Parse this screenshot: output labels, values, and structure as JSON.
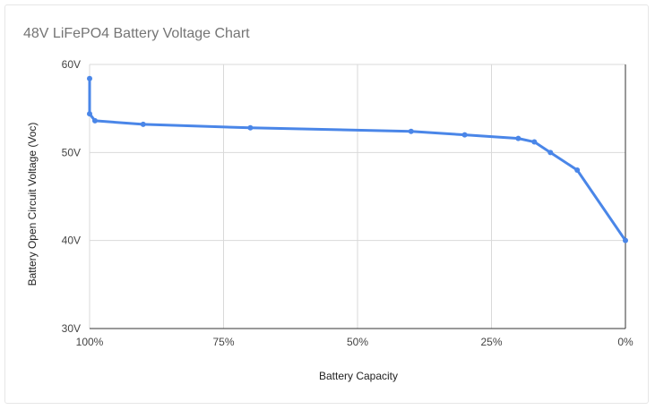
{
  "chart_data": {
    "type": "line",
    "title": "48V LiFePO4 Battery Voltage Chart",
    "xlabel": "Battery Capacity",
    "ylabel": "Battery Open Circuit Voltage (Voc)",
    "x_reversed": true,
    "xlim": [
      100,
      0
    ],
    "ylim": [
      30,
      60
    ],
    "x_ticks": [
      {
        "value": 100,
        "label": "100%"
      },
      {
        "value": 75,
        "label": "75%"
      },
      {
        "value": 50,
        "label": "50%"
      },
      {
        "value": 25,
        "label": "25%"
      },
      {
        "value": 0,
        "label": "0%"
      }
    ],
    "y_ticks": [
      {
        "value": 60,
        "label": "60V"
      },
      {
        "value": 50,
        "label": "50V"
      },
      {
        "value": 40,
        "label": "40V"
      },
      {
        "value": 30,
        "label": "30V"
      }
    ],
    "grid": true,
    "series": [
      {
        "color": "#4a86e8",
        "points": [
          {
            "x": 100,
            "y": 58.4
          },
          {
            "x": 100,
            "y": 54.4
          },
          {
            "x": 99,
            "y": 53.6
          },
          {
            "x": 90,
            "y": 53.2
          },
          {
            "x": 70,
            "y": 52.8
          },
          {
            "x": 40,
            "y": 52.4
          },
          {
            "x": 30,
            "y": 52.0
          },
          {
            "x": 20,
            "y": 51.6
          },
          {
            "x": 17,
            "y": 51.2
          },
          {
            "x": 14,
            "y": 50.0
          },
          {
            "x": 9,
            "y": 48.0
          },
          {
            "x": 0,
            "y": 40.0
          }
        ]
      }
    ]
  }
}
